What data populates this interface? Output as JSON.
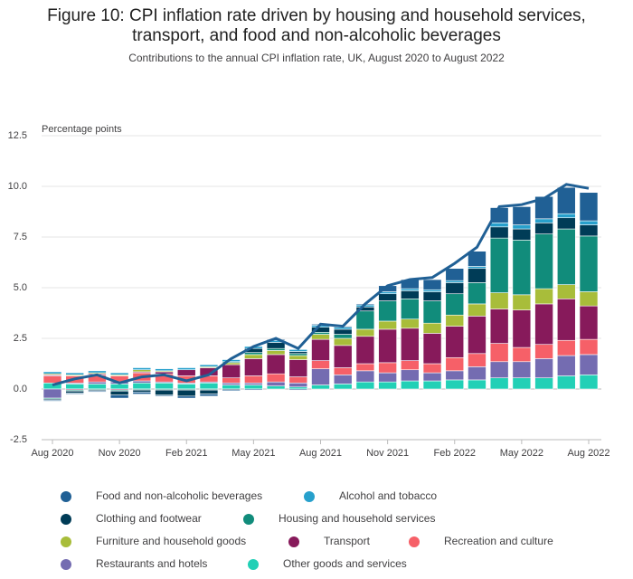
{
  "chart_data": {
    "type": "stacked-bar-line",
    "title": [
      "Figure 10: CPI inflation rate driven by housing and household services,",
      "transport, and food and non-alcoholic beverages"
    ],
    "subtitle": "Contributions to the annual CPI inflation rate, UK, August 2020 to August 2022",
    "y_label": "Percentage points",
    "categories": [
      "Aug 2020",
      null,
      null,
      "Nov 2020",
      null,
      null,
      "Feb 2021",
      null,
      null,
      "May 2021",
      null,
      null,
      "Aug 2021",
      null,
      null,
      "Nov 2021",
      null,
      null,
      "Feb 2022",
      null,
      null,
      "May 2022",
      null,
      null,
      "Aug 2022"
    ],
    "ylim": [
      -2.5,
      12.5
    ],
    "yticks": [
      -2.5,
      {
        "value": 0,
        "label": "0.0"
      },
      2.5,
      {
        "value": 5,
        "label": "5.0"
      },
      7.5,
      {
        "value": 10,
        "label": "10.0"
      },
      12.5
    ],
    "grid": true,
    "series": [
      {
        "name": "Food and non-alcoholic beverages",
        "color": "#206095",
        "values": [
          -0.05,
          -0.05,
          -0.05,
          -0.15,
          -0.1,
          -0.05,
          -0.1,
          -0.1,
          -0.05,
          -0.05,
          0.05,
          -0.05,
          0.05,
          0.05,
          0.05,
          0.3,
          0.45,
          0.5,
          0.6,
          0.75,
          0.75,
          0.9,
          1.1,
          1.3,
          1.4
        ]
      },
      {
        "name": "Alcohol and tobacco",
        "color": "#27a0cc",
        "values": [
          0.1,
          0.1,
          0.1,
          0.1,
          0.1,
          0.1,
          0.1,
          0.1,
          0.1,
          0.1,
          0.1,
          0.1,
          0.1,
          0.1,
          0.1,
          0.1,
          0.1,
          0.1,
          0.1,
          0.1,
          0.2,
          0.2,
          0.2,
          0.2,
          0.2
        ]
      },
      {
        "name": "Clothing and footwear",
        "color": "#003c57",
        "values": [
          -0.05,
          -0.1,
          -0.05,
          -0.2,
          -0.1,
          -0.25,
          -0.3,
          -0.2,
          -0.05,
          0.2,
          0.3,
          0.1,
          0.25,
          0.25,
          0.2,
          0.35,
          0.4,
          0.45,
          0.55,
          0.7,
          0.55,
          0.55,
          0.55,
          0.55,
          0.55
        ]
      },
      {
        "name": "Housing and household services",
        "color": "#118c7b",
        "values": [
          -0.05,
          -0.05,
          -0.05,
          -0.05,
          -0.05,
          -0.05,
          -0.05,
          -0.05,
          0.05,
          0.1,
          0.1,
          0.1,
          0.1,
          0.2,
          0.9,
          1.0,
          1.0,
          1.1,
          1.05,
          1.05,
          2.7,
          2.7,
          2.7,
          2.75,
          2.75
        ]
      },
      {
        "name": "Furniture and household goods",
        "color": "#a8bd3a",
        "values": [
          0.05,
          0.05,
          0.05,
          0.05,
          0.1,
          0.05,
          0.0,
          0.05,
          0.1,
          0.2,
          0.2,
          0.2,
          0.25,
          0.35,
          0.35,
          0.4,
          0.45,
          0.5,
          0.55,
          0.6,
          0.8,
          0.75,
          0.75,
          0.7,
          0.7
        ]
      },
      {
        "name": "Transport",
        "color": "#871a5b",
        "values": [
          0.05,
          -0.05,
          0.05,
          -0.05,
          0.05,
          0.1,
          0.3,
          0.4,
          0.65,
          0.85,
          0.95,
          0.85,
          1.05,
          1.1,
          1.35,
          1.65,
          1.6,
          1.5,
          1.55,
          1.85,
          1.7,
          1.85,
          2.0,
          2.05,
          1.65
        ]
      },
      {
        "name": "Recreation and culture",
        "color": "#f66068",
        "values": [
          0.35,
          0.35,
          0.35,
          0.3,
          0.4,
          0.4,
          0.35,
          0.3,
          0.25,
          0.35,
          0.4,
          0.3,
          0.4,
          0.35,
          0.35,
          0.5,
          0.45,
          0.45,
          0.65,
          0.65,
          0.9,
          0.7,
          0.7,
          0.75,
          0.75
        ]
      },
      {
        "name": "Restaurants and hotels",
        "color": "#746cb1",
        "values": [
          -0.45,
          0.05,
          0.1,
          0.1,
          0.1,
          0.05,
          0.05,
          0.05,
          0.1,
          0.1,
          0.2,
          0.2,
          0.8,
          0.45,
          0.55,
          0.45,
          0.55,
          0.4,
          0.45,
          0.65,
          0.8,
          0.8,
          0.95,
          1.0,
          1.0
        ]
      },
      {
        "name": "Other goods and services",
        "color": "#22d0b6",
        "values": [
          0.3,
          0.25,
          0.25,
          0.25,
          0.3,
          0.3,
          0.25,
          0.3,
          0.2,
          0.2,
          0.15,
          0.1,
          0.2,
          0.25,
          0.35,
          0.35,
          0.4,
          0.4,
          0.45,
          0.45,
          0.55,
          0.55,
          0.55,
          0.65,
          0.7
        ]
      }
    ],
    "line": {
      "color": "#206095",
      "values": [
        0.2,
        0.5,
        0.7,
        0.3,
        0.6,
        0.7,
        0.4,
        0.7,
        1.5,
        2.1,
        2.5,
        2.0,
        3.2,
        3.1,
        4.2,
        5.1,
        5.4,
        5.5,
        6.2,
        7.0,
        9.0,
        9.1,
        9.4,
        10.1,
        9.9
      ]
    }
  }
}
